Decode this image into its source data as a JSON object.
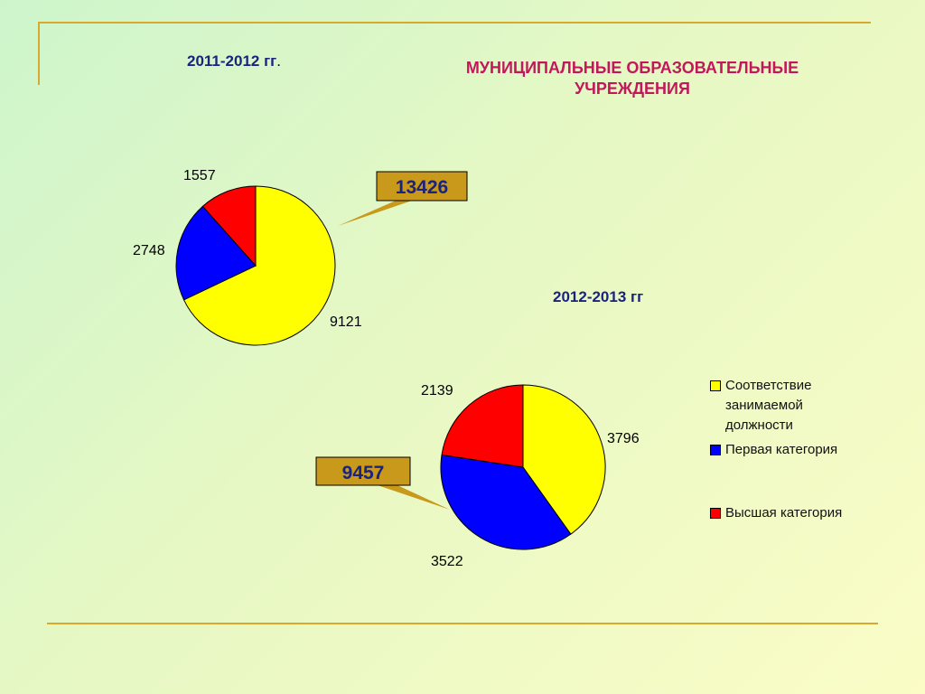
{
  "header": {
    "period_a": "2011-2012 гг",
    "period_a_suffix": ".",
    "title_line1": "МУНИЦИПАЛЬНЫЕ ОБРАЗОВАТЕЛЬНЫЕ",
    "title_line2": "УЧРЕЖДЕНИЯ",
    "period_b": "2012-2013 гг"
  },
  "colors": {
    "category_1": "#ffff00",
    "category_2": "#0000ff",
    "category_3": "#ff0000",
    "callout": "#c8991a",
    "frame": "#d9a92e"
  },
  "chart_data": [
    {
      "type": "pie",
      "period": "2011-2012 гг",
      "categories": [
        "Соответствие занимаемой должности",
        "Первая категория",
        "Высшая категория"
      ],
      "values": [
        9121,
        2748,
        1557
      ],
      "total": "13426"
    },
    {
      "type": "pie",
      "period": "2012-2013 гг",
      "categories": [
        "Соответствие занимаемой должности",
        "Первая категория",
        "Высшая категория"
      ],
      "values": [
        3796,
        3522,
        2139
      ],
      "total": "9457"
    }
  ],
  "legend": {
    "placement": "right",
    "items": [
      {
        "line1": "Соответствие",
        "line2": "занимаемой",
        "line3": "должности"
      },
      {
        "line1": "Первая категория"
      },
      {
        "line1": "Высшая категория"
      }
    ]
  }
}
